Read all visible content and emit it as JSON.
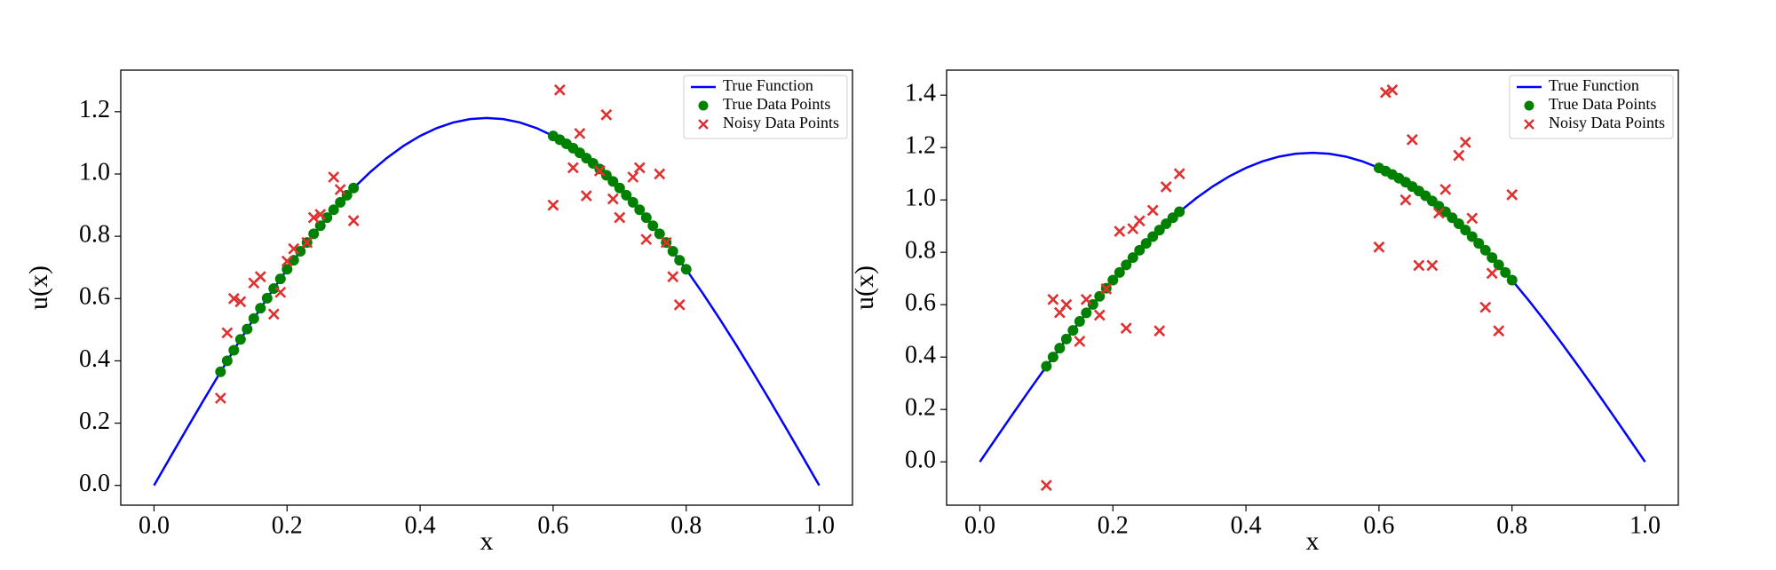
{
  "chart_data": [
    {
      "type": "line",
      "xlabel": "x",
      "ylabel": "u(x)",
      "xlim": [
        -0.05,
        1.05
      ],
      "ylim": [
        -0.0635,
        1.3335
      ],
      "xticks": [
        {
          "value": 0,
          "label": "0.0"
        },
        0.2,
        0.4,
        0.6,
        0.8,
        {
          "value": 1,
          "label": "1.0"
        }
      ],
      "yticks": [
        {
          "value": 0,
          "label": "0.0"
        },
        0.2,
        0.4,
        0.6,
        0.8,
        {
          "value": 1,
          "label": "1.0"
        },
        1.2
      ],
      "legend": "upper right",
      "series": [
        {
          "name": "True Function",
          "color": "#0000ff",
          "marker": "line",
          "x": [
            0,
            0.025,
            0.05,
            0.075,
            0.1,
            0.125,
            0.15,
            0.175,
            0.2,
            0.225,
            0.25,
            0.275,
            0.3,
            0.325,
            0.35,
            0.375,
            0.4,
            0.425,
            0.45,
            0.475,
            0.5,
            0.525,
            0.55,
            0.575,
            0.6,
            0.625,
            0.65,
            0.675,
            0.7,
            0.725,
            0.75,
            0.775,
            0.8,
            0.825,
            0.85,
            0.875,
            0.9,
            0.925,
            0.95,
            0.975,
            1
          ],
          "values": [
            0,
            0.0926,
            0.1846,
            0.2755,
            0.3646,
            0.4516,
            0.5357,
            0.6166,
            0.6936,
            0.7663,
            0.8344,
            0.8973,
            0.9546,
            1.0061,
            1.0514,
            1.0902,
            1.1223,
            1.1474,
            1.1655,
            1.1764,
            1.18,
            1.1764,
            1.1655,
            1.1474,
            1.1223,
            1.0902,
            1.0514,
            1.0061,
            0.9546,
            0.8973,
            0.8344,
            0.7663,
            0.6936,
            0.6166,
            0.5357,
            0.4516,
            0.3646,
            0.2755,
            0.1846,
            0.0926,
            0
          ]
        },
        {
          "name": "True Data Points",
          "color": "#008000",
          "marker": "o",
          "x": [
            0.1,
            0.11,
            0.12,
            0.13,
            0.14,
            0.15,
            0.16,
            0.17,
            0.18,
            0.19,
            0.2,
            0.21,
            0.22,
            0.23,
            0.24,
            0.25,
            0.26,
            0.27,
            0.28,
            0.29,
            0.3,
            0.6,
            0.61,
            0.62,
            0.63,
            0.64,
            0.65,
            0.66,
            0.67,
            0.68,
            0.69,
            0.7,
            0.71,
            0.72,
            0.73,
            0.74,
            0.75,
            0.76,
            0.77,
            0.78,
            0.79,
            0.8
          ],
          "values": [
            0.365,
            0.4,
            0.434,
            0.469,
            0.502,
            0.536,
            0.569,
            0.601,
            0.632,
            0.663,
            0.694,
            0.723,
            0.752,
            0.78,
            0.808,
            0.834,
            0.86,
            0.885,
            0.909,
            0.932,
            0.955,
            1.122,
            1.11,
            1.097,
            1.083,
            1.068,
            1.051,
            1.034,
            1.016,
            0.996,
            0.976,
            0.955,
            0.932,
            0.909,
            0.885,
            0.86,
            0.834,
            0.808,
            0.78,
            0.752,
            0.723,
            0.694
          ]
        },
        {
          "name": "Noisy Data Points",
          "color": "#e03030",
          "marker": "x",
          "x": [
            0.1,
            0.11,
            0.12,
            0.13,
            0.15,
            0.16,
            0.18,
            0.19,
            0.2,
            0.21,
            0.23,
            0.24,
            0.25,
            0.27,
            0.28,
            0.3,
            0.6,
            0.61,
            0.63,
            0.64,
            0.65,
            0.67,
            0.68,
            0.69,
            0.7,
            0.72,
            0.73,
            0.74,
            0.76,
            0.77,
            0.78,
            0.79
          ],
          "values": [
            0.28,
            0.49,
            0.6,
            0.59,
            0.65,
            0.67,
            0.55,
            0.62,
            0.72,
            0.76,
            0.78,
            0.86,
            0.87,
            0.99,
            0.95,
            0.85,
            0.9,
            1.27,
            1.02,
            1.13,
            0.93,
            1.01,
            1.19,
            0.92,
            0.86,
            0.99,
            1.02,
            0.79,
            1.0,
            0.78,
            0.67,
            0.58
          ]
        }
      ]
    },
    {
      "type": "line",
      "xlabel": "x",
      "ylabel": "u(x)",
      "xlim": [
        -0.05,
        1.05
      ],
      "ylim": [
        -0.1655,
        1.4955
      ],
      "xticks": [
        {
          "value": 0,
          "label": "0.0"
        },
        0.2,
        0.4,
        0.6,
        0.8,
        {
          "value": 1,
          "label": "1.0"
        }
      ],
      "yticks": [
        {
          "value": 0,
          "label": "0.0"
        },
        0.2,
        0.4,
        0.6,
        0.8,
        {
          "value": 1,
          "label": "1.0"
        },
        1.2,
        1.4
      ],
      "legend": "upper right",
      "series": [
        {
          "name": "True Function",
          "color": "#0000ff",
          "marker": "line",
          "x": [
            0,
            0.025,
            0.05,
            0.075,
            0.1,
            0.125,
            0.15,
            0.175,
            0.2,
            0.225,
            0.25,
            0.275,
            0.3,
            0.325,
            0.35,
            0.375,
            0.4,
            0.425,
            0.45,
            0.475,
            0.5,
            0.525,
            0.55,
            0.575,
            0.6,
            0.625,
            0.65,
            0.675,
            0.7,
            0.725,
            0.75,
            0.775,
            0.8,
            0.825,
            0.85,
            0.875,
            0.9,
            0.925,
            0.95,
            0.975,
            1
          ],
          "values": [
            0,
            0.0926,
            0.1846,
            0.2755,
            0.3646,
            0.4516,
            0.5357,
            0.6166,
            0.6936,
            0.7663,
            0.8344,
            0.8973,
            0.9546,
            1.0061,
            1.0514,
            1.0902,
            1.1223,
            1.1474,
            1.1655,
            1.1764,
            1.18,
            1.1764,
            1.1655,
            1.1474,
            1.1223,
            1.0902,
            1.0514,
            1.0061,
            0.9546,
            0.8973,
            0.8344,
            0.7663,
            0.6936,
            0.6166,
            0.5357,
            0.4516,
            0.3646,
            0.2755,
            0.1846,
            0.0926,
            0
          ]
        },
        {
          "name": "True Data Points",
          "color": "#008000",
          "marker": "o",
          "x": [
            0.1,
            0.11,
            0.12,
            0.13,
            0.14,
            0.15,
            0.16,
            0.17,
            0.18,
            0.19,
            0.2,
            0.21,
            0.22,
            0.23,
            0.24,
            0.25,
            0.26,
            0.27,
            0.28,
            0.29,
            0.3,
            0.6,
            0.61,
            0.62,
            0.63,
            0.64,
            0.65,
            0.66,
            0.67,
            0.68,
            0.69,
            0.7,
            0.71,
            0.72,
            0.73,
            0.74,
            0.75,
            0.76,
            0.77,
            0.78,
            0.79,
            0.8
          ],
          "values": [
            0.365,
            0.4,
            0.434,
            0.469,
            0.502,
            0.536,
            0.569,
            0.601,
            0.632,
            0.663,
            0.694,
            0.723,
            0.752,
            0.78,
            0.808,
            0.834,
            0.86,
            0.885,
            0.909,
            0.932,
            0.955,
            1.122,
            1.11,
            1.097,
            1.083,
            1.068,
            1.051,
            1.034,
            1.016,
            0.996,
            0.976,
            0.955,
            0.932,
            0.909,
            0.885,
            0.86,
            0.834,
            0.808,
            0.78,
            0.752,
            0.723,
            0.694
          ]
        },
        {
          "name": "Noisy Data Points",
          "color": "#e03030",
          "marker": "x",
          "x": [
            0.1,
            0.11,
            0.12,
            0.13,
            0.15,
            0.16,
            0.18,
            0.19,
            0.21,
            0.22,
            0.23,
            0.24,
            0.26,
            0.27,
            0.28,
            0.3,
            0.6,
            0.61,
            0.62,
            0.64,
            0.65,
            0.66,
            0.68,
            0.69,
            0.7,
            0.72,
            0.73,
            0.74,
            0.76,
            0.77,
            0.78,
            0.8
          ],
          "values": [
            -0.09,
            0.62,
            0.57,
            0.6,
            0.46,
            0.62,
            0.56,
            0.66,
            0.88,
            0.51,
            0.89,
            0.92,
            0.96,
            0.5,
            1.05,
            1.1,
            0.82,
            1.41,
            1.42,
            1.0,
            1.23,
            0.75,
            0.75,
            0.95,
            1.04,
            1.17,
            1.22,
            0.93,
            0.59,
            0.72,
            0.5,
            1.02
          ]
        }
      ]
    }
  ]
}
